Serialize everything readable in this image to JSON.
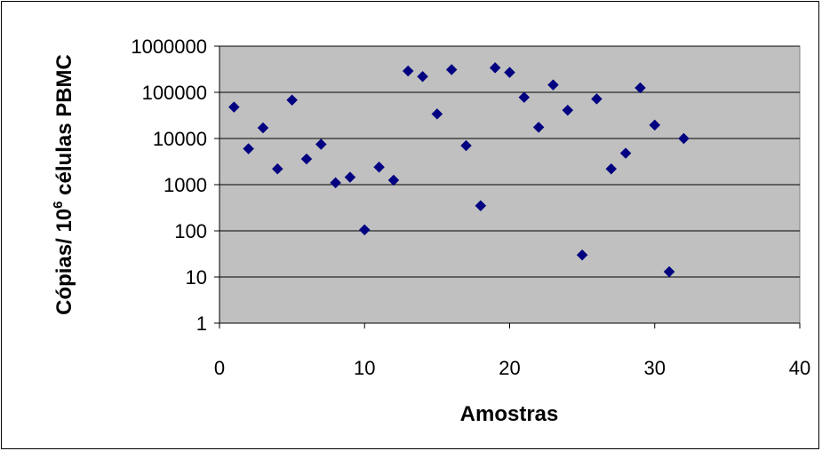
{
  "chart_data": {
    "type": "scatter",
    "title": "",
    "xlabel": "Amostras",
    "ylabel": {
      "prefix": "Cópias/ 10",
      "superscript": "6",
      "suffix": " células PBMC"
    },
    "xlim": [
      0,
      40
    ],
    "ylim": [
      1,
      1000000
    ],
    "y_scale": "log",
    "x_ticks": [
      "0",
      "10",
      "20",
      "30",
      "40"
    ],
    "y_ticks": [
      "1",
      "10",
      "100",
      "1000",
      "10000",
      "100000",
      "1000000"
    ],
    "x_tick_values": [
      0,
      10,
      20,
      30,
      40
    ],
    "y_tick_values": [
      1,
      10,
      100,
      1000,
      10000,
      100000,
      1000000
    ],
    "grid": "horizontal",
    "legend": "none",
    "plot_background": "#c0c0c0",
    "marker_color": "#000080",
    "marker": "diamond",
    "points": [
      {
        "x": 1,
        "y": 48000
      },
      {
        "x": 2,
        "y": 6000
      },
      {
        "x": 3,
        "y": 17000
      },
      {
        "x": 4,
        "y": 2200
      },
      {
        "x": 5,
        "y": 68000
      },
      {
        "x": 6,
        "y": 3600
      },
      {
        "x": 7,
        "y": 7500
      },
      {
        "x": 8,
        "y": 1100
      },
      {
        "x": 9,
        "y": 1450
      },
      {
        "x": 10,
        "y": 105
      },
      {
        "x": 11,
        "y": 2400
      },
      {
        "x": 12,
        "y": 1250
      },
      {
        "x": 13,
        "y": 290000
      },
      {
        "x": 14,
        "y": 220000
      },
      {
        "x": 15,
        "y": 34000
      },
      {
        "x": 16,
        "y": 310000
      },
      {
        "x": 17,
        "y": 7000
      },
      {
        "x": 18,
        "y": 350
      },
      {
        "x": 19,
        "y": 340000
      },
      {
        "x": 20,
        "y": 270000
      },
      {
        "x": 21,
        "y": 78000
      },
      {
        "x": 22,
        "y": 17500
      },
      {
        "x": 23,
        "y": 145000
      },
      {
        "x": 24,
        "y": 41000
      },
      {
        "x": 25,
        "y": 30
      },
      {
        "x": 26,
        "y": 72000
      },
      {
        "x": 27,
        "y": 2200
      },
      {
        "x": 28,
        "y": 4800
      },
      {
        "x": 29,
        "y": 125000
      },
      {
        "x": 30,
        "y": 19500
      },
      {
        "x": 31,
        "y": 13
      },
      {
        "x": 32,
        "y": 10000
      }
    ]
  }
}
